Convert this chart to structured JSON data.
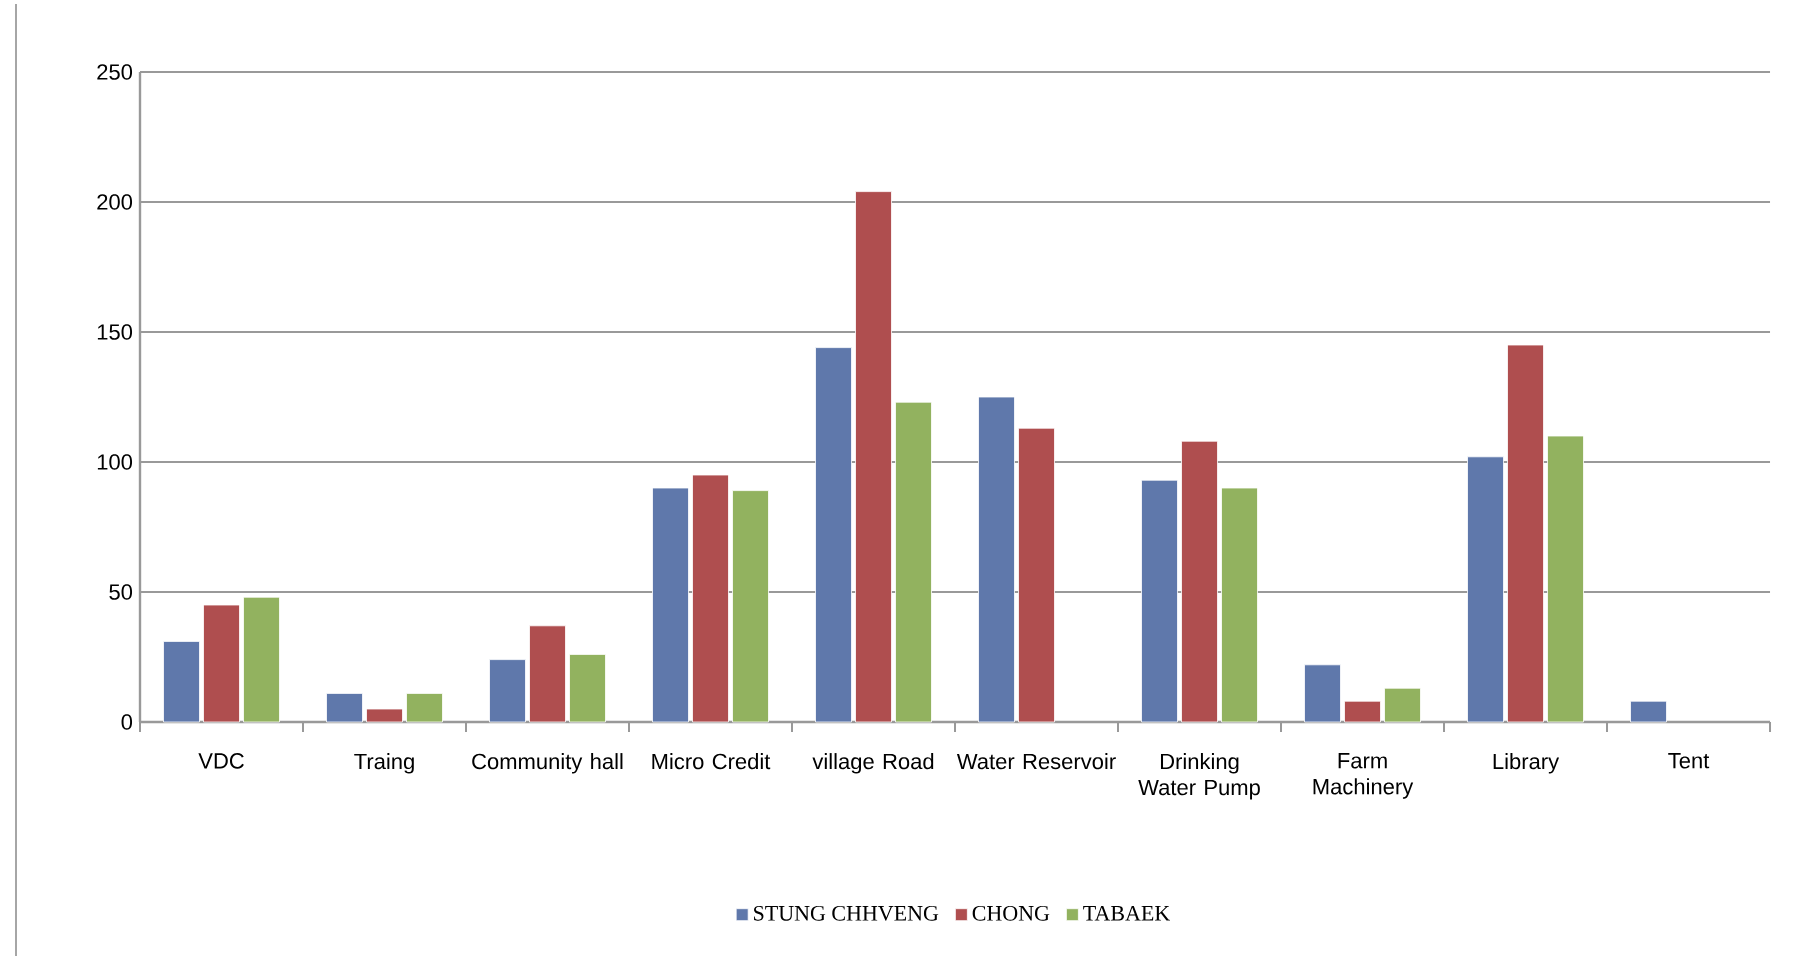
{
  "chart_data": {
    "type": "bar",
    "categories": [
      "VDC",
      "Traing",
      "Community hall",
      "Micro Credit",
      "village Road",
      "Water Reservoir",
      "Drinking Water Pump",
      "Farm Machinery",
      "Library",
      "Tent"
    ],
    "series": [
      {
        "name": "STUNG CHHVENG",
        "color": "#5f78ab",
        "values": [
          31,
          11,
          24,
          90,
          144,
          125,
          93,
          22,
          102,
          8
        ]
      },
      {
        "name": "CHONG",
        "color": "#af4e4f",
        "values": [
          45,
          5,
          37,
          95,
          204,
          113,
          108,
          8,
          145,
          null
        ]
      },
      {
        "name": "TABAEK",
        "color": "#92b25f",
        "values": [
          48,
          11,
          26,
          89,
          123,
          null,
          90,
          13,
          110,
          null
        ]
      }
    ],
    "ylim": [
      0,
      250
    ],
    "yticks": [
      0,
      50,
      100,
      150,
      200,
      250
    ],
    "grid": "y",
    "legend": "bottom"
  }
}
